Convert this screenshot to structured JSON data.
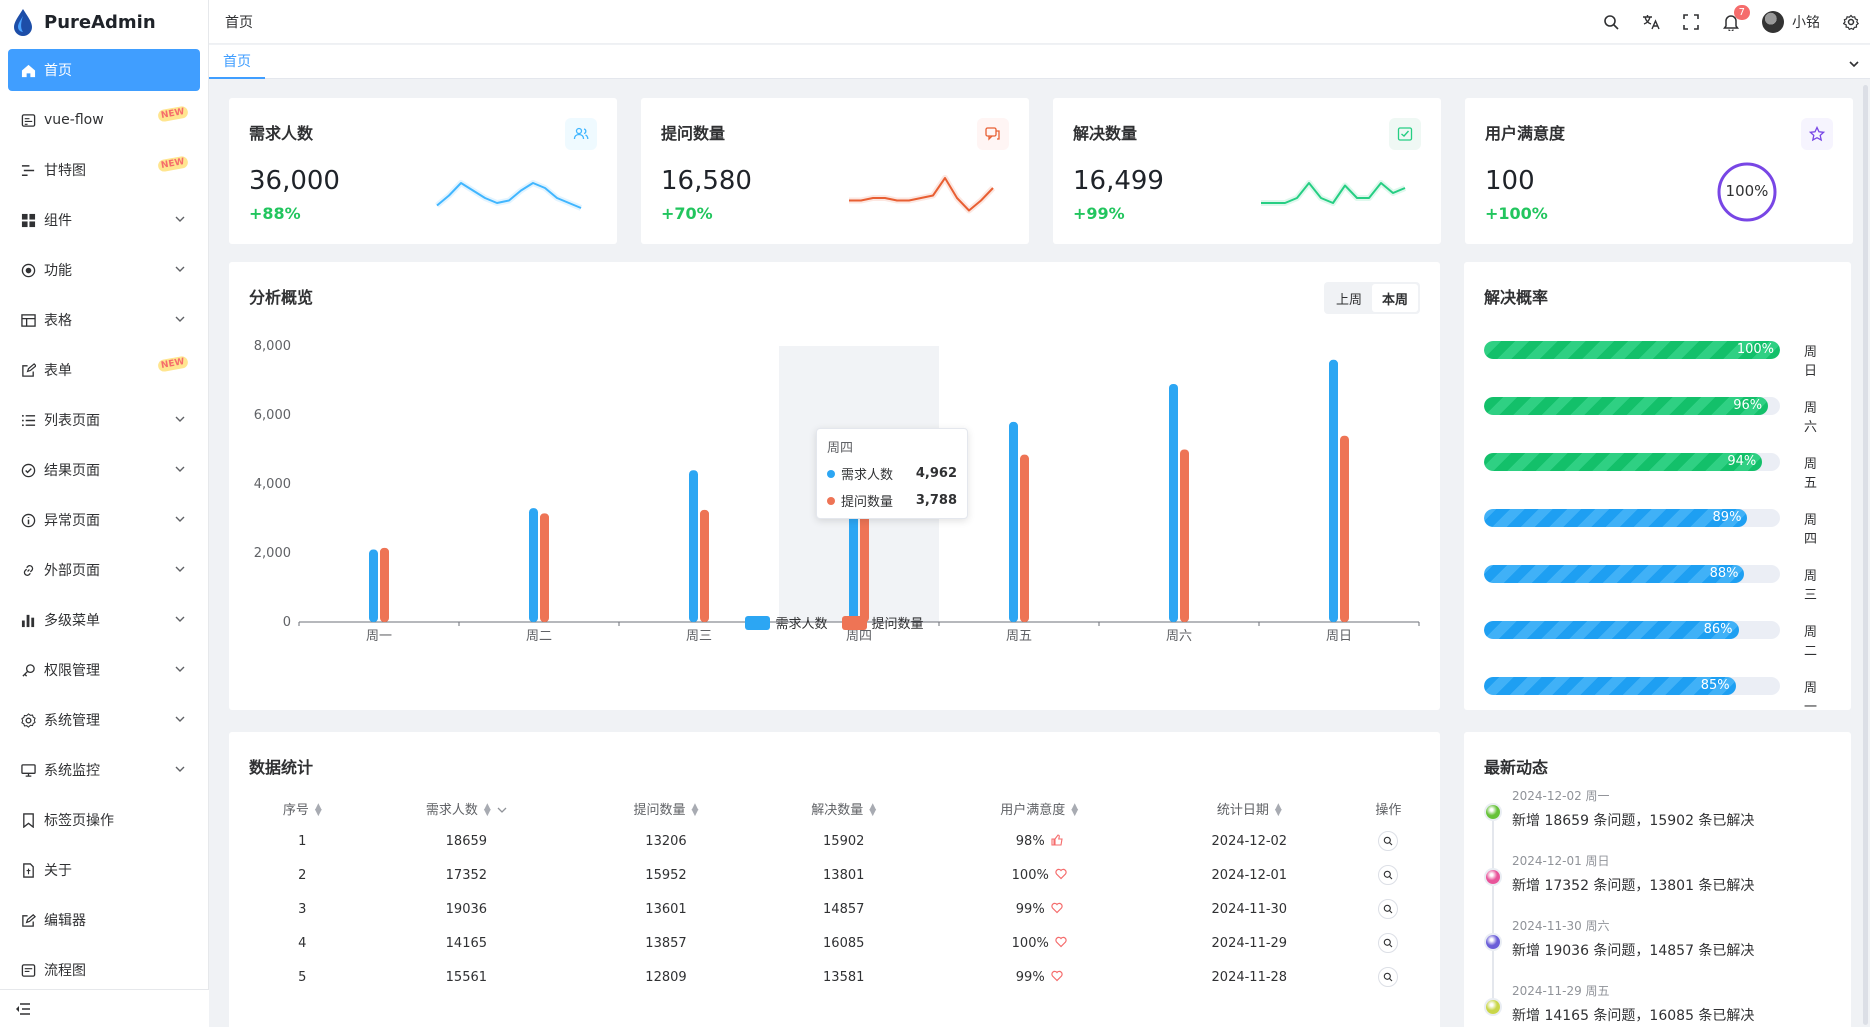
{
  "app": {
    "name": "PureAdmin"
  },
  "sidebar": {
    "items": [
      {
        "label": "首页",
        "icon": "home-icon",
        "active": true
      },
      {
        "label": "vue-flow",
        "icon": "flow-icon",
        "new": true
      },
      {
        "label": "甘特图",
        "icon": "gantt-icon",
        "new": true
      },
      {
        "label": "组件",
        "icon": "grid-icon",
        "expandable": true
      },
      {
        "label": "功能",
        "icon": "function-icon",
        "expandable": true
      },
      {
        "label": "表格",
        "icon": "table-icon",
        "expandable": true
      },
      {
        "label": "表单",
        "icon": "form-icon",
        "new": true
      },
      {
        "label": "列表页面",
        "icon": "list-icon",
        "expandable": true
      },
      {
        "label": "结果页面",
        "icon": "check-circle-icon",
        "expandable": true
      },
      {
        "label": "异常页面",
        "icon": "info-icon",
        "expandable": true
      },
      {
        "label": "外部页面",
        "icon": "link-icon",
        "expandable": true
      },
      {
        "label": "多级菜单",
        "icon": "bar-icon",
        "expandable": true
      },
      {
        "label": "权限管理",
        "icon": "key-icon",
        "expandable": true
      },
      {
        "label": "系统管理",
        "icon": "settings-icon",
        "expandable": true
      },
      {
        "label": "系统监控",
        "icon": "monitor-icon",
        "expandable": true
      },
      {
        "label": "标签页操作",
        "icon": "bookmark-icon"
      },
      {
        "label": "关于",
        "icon": "doc-icon"
      },
      {
        "label": "编辑器",
        "icon": "edit-icon"
      },
      {
        "label": "流程图",
        "icon": "flowchart-icon"
      }
    ],
    "new_badge": "NEW"
  },
  "header": {
    "breadcrumb": "首页",
    "notifications": "7",
    "user": "小铭"
  },
  "tabs": [
    {
      "label": "首页"
    }
  ],
  "stats": [
    {
      "title": "需求人数",
      "value": "36,000",
      "change": "+88%",
      "color": "#41b6ff",
      "bg": "#effaff"
    },
    {
      "title": "提问数量",
      "value": "16,580",
      "change": "+70%",
      "color": "#e85f33",
      "bg": "#fff5f4"
    },
    {
      "title": "解决数量",
      "value": "16,499",
      "change": "+99%",
      "color": "#26ce83",
      "bg": "#eff8f4"
    },
    {
      "title": "用户满意度",
      "value": "100",
      "change": "+100%",
      "color": "#7846e5",
      "bg": "#f6f4fe",
      "ring": "100%"
    }
  ],
  "overview": {
    "title": "分析概览",
    "seg": [
      "上周",
      "本周"
    ],
    "selected": "本周"
  },
  "chart_data": {
    "type": "bar",
    "categories": [
      "周一",
      "周二",
      "周三",
      "周四",
      "周五",
      "周六",
      "周日"
    ],
    "series": [
      {
        "name": "需求人数",
        "color": "#2ca6f3",
        "values": [
          2100,
          3300,
          4400,
          4962,
          5800,
          6900,
          7600
        ]
      },
      {
        "name": "提问数量",
        "color": "#ee7455",
        "values": [
          2150,
          3150,
          3250,
          3788,
          4850,
          5000,
          5400
        ]
      }
    ],
    "ylim": [
      0,
      8000
    ],
    "yticks": [
      "0",
      "2,000",
      "4,000",
      "6,000",
      "8,000"
    ],
    "tooltip": {
      "category": "周四",
      "rows": [
        {
          "name": "需求人数",
          "value": "4,962"
        },
        {
          "name": "提问数量",
          "value": "3,788"
        }
      ]
    }
  },
  "resolve": {
    "title": "解决概率",
    "rows": [
      {
        "pct": 100,
        "text": "100%",
        "day": "周日",
        "style": "g"
      },
      {
        "pct": 96,
        "text": "96%",
        "day": "周六",
        "style": "g"
      },
      {
        "pct": 94,
        "text": "94%",
        "day": "周五",
        "style": "g"
      },
      {
        "pct": 89,
        "text": "89%",
        "day": "周四",
        "style": "b"
      },
      {
        "pct": 88,
        "text": "88%",
        "day": "周三",
        "style": "b"
      },
      {
        "pct": 86,
        "text": "86%",
        "day": "周二",
        "style": "b"
      },
      {
        "pct": 85,
        "text": "85%",
        "day": "周一",
        "style": "b"
      }
    ]
  },
  "table": {
    "title": "数据统计",
    "columns": [
      "序号",
      "需求人数",
      "提问数量",
      "解决数量",
      "用户满意度",
      "统计日期",
      "操作"
    ],
    "rows": [
      [
        "1",
        "18659",
        "13206",
        "15902",
        "98%",
        "2024-12-02"
      ],
      [
        "2",
        "17352",
        "15952",
        "13801",
        "100%",
        "2024-12-01"
      ],
      [
        "3",
        "19036",
        "13601",
        "14857",
        "99%",
        "2024-11-30"
      ],
      [
        "4",
        "14165",
        "13857",
        "16085",
        "100%",
        "2024-11-29"
      ],
      [
        "5",
        "15561",
        "12809",
        "13581",
        "99%",
        "2024-11-28"
      ]
    ]
  },
  "news": {
    "title": "最新动态",
    "items": [
      {
        "date": "2024-12-02 周一",
        "text": "新增 18659 条问题，15902 条已解决",
        "color": "#67c23a"
      },
      {
        "date": "2024-12-01 周日",
        "text": "新增 17352 条问题，13801 条已解决",
        "color": "#e8559a"
      },
      {
        "date": "2024-11-30 周六",
        "text": "新增 19036 条问题，14857 条已解决",
        "color": "#6b5ed8"
      },
      {
        "date": "2024-11-29 周五",
        "text": "新增 14165 条问题，16085 条已解决",
        "color": "#c9d64a"
      }
    ]
  }
}
